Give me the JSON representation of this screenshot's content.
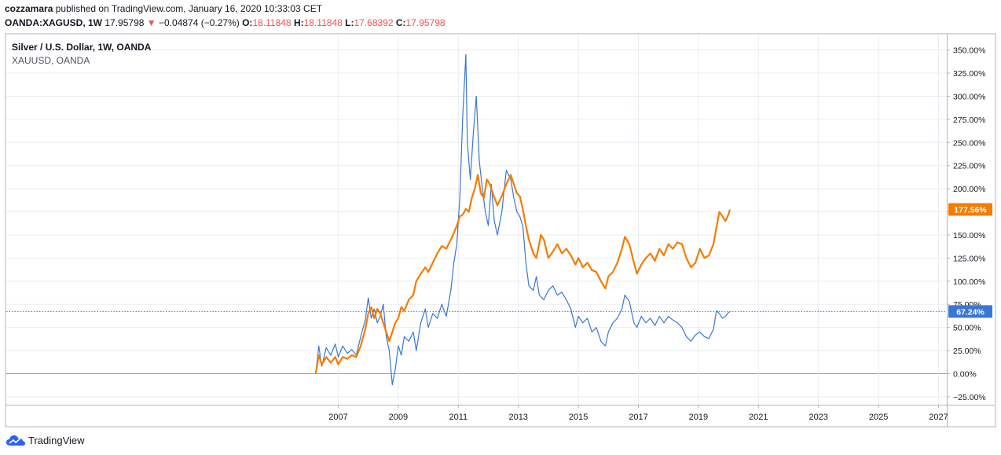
{
  "header": {
    "author": "cozzamara",
    "published_text": "published on TradingView.com, January 16, 2020 10:33:03 CET"
  },
  "ohlc": {
    "symbol": "OANDA:XAGUSD, 1W",
    "last": "17.95798",
    "change": "−0.04874 (−0.27%)",
    "o_label": "O:",
    "o": "18.11848",
    "h_label": "H:",
    "h": "18.11848",
    "l_label": "L:",
    "l": "17.68392",
    "c_label": "C:",
    "c": "17.95798"
  },
  "legend": {
    "main": "Silver / U.S. Dollar, 1W, OANDA",
    "compare": "XAUUSD, OANDA"
  },
  "footer": {
    "brand": "TradingView"
  },
  "colors": {
    "silver": "#f57c00",
    "gold": "#3a76d4",
    "down": "#ef5350",
    "grid": "#e9edf3"
  },
  "chart_data": {
    "type": "line",
    "y_unit": "%",
    "ylim": [
      -27,
      355
    ],
    "xlim": [
      2006.0,
      2027.0
    ],
    "y_ticks": [
      "350.00%",
      "325.00%",
      "300.00%",
      "275.00%",
      "250.00%",
      "225.00%",
      "200.00%",
      "175.00%",
      "150.00%",
      "125.00%",
      "100.00%",
      "75.00%",
      "50.00%",
      "25.00%",
      "0.00%",
      "−25.00%"
    ],
    "y_tick_values": [
      350,
      325,
      300,
      275,
      250,
      225,
      200,
      175,
      150,
      125,
      100,
      75,
      50,
      25,
      0,
      -25
    ],
    "x_ticks": [
      "2007",
      "2009",
      "2011",
      "2013",
      "2015",
      "2017",
      "2019",
      "2021",
      "2023",
      "2025",
      "2027"
    ],
    "x_tick_values": [
      2007,
      2009,
      2011,
      2013,
      2015,
      2017,
      2019,
      2021,
      2023,
      2025,
      2027
    ],
    "grid": true,
    "series": [
      {
        "name": "XAUUSD, OANDA",
        "color": "#3a76d4",
        "last_label": "67.24%",
        "last_value": 67.24,
        "points": [
          [
            2006.25,
            0
          ],
          [
            2006.35,
            30
          ],
          [
            2006.45,
            8
          ],
          [
            2006.6,
            28
          ],
          [
            2006.75,
            20
          ],
          [
            2006.9,
            32
          ],
          [
            2007.0,
            18
          ],
          [
            2007.15,
            30
          ],
          [
            2007.3,
            22
          ],
          [
            2007.45,
            26
          ],
          [
            2007.6,
            20
          ],
          [
            2007.75,
            40
          ],
          [
            2007.9,
            58
          ],
          [
            2008.0,
            82
          ],
          [
            2008.1,
            60
          ],
          [
            2008.2,
            70
          ],
          [
            2008.3,
            55
          ],
          [
            2008.4,
            62
          ],
          [
            2008.5,
            75
          ],
          [
            2008.6,
            40
          ],
          [
            2008.7,
            25
          ],
          [
            2008.8,
            -12
          ],
          [
            2008.9,
            5
          ],
          [
            2009.0,
            30
          ],
          [
            2009.1,
            20
          ],
          [
            2009.2,
            40
          ],
          [
            2009.35,
            35
          ],
          [
            2009.5,
            45
          ],
          [
            2009.6,
            25
          ],
          [
            2009.75,
            55
          ],
          [
            2009.9,
            70
          ],
          [
            2010.0,
            50
          ],
          [
            2010.15,
            65
          ],
          [
            2010.3,
            60
          ],
          [
            2010.45,
            75
          ],
          [
            2010.6,
            62
          ],
          [
            2010.75,
            90
          ],
          [
            2010.85,
            120
          ],
          [
            2010.95,
            140
          ],
          [
            2011.05,
            190
          ],
          [
            2011.15,
            280
          ],
          [
            2011.25,
            345
          ],
          [
            2011.3,
            250
          ],
          [
            2011.4,
            210
          ],
          [
            2011.5,
            260
          ],
          [
            2011.6,
            300
          ],
          [
            2011.7,
            230
          ],
          [
            2011.8,
            200
          ],
          [
            2011.9,
            175
          ],
          [
            2012.0,
            160
          ],
          [
            2012.1,
            205
          ],
          [
            2012.2,
            165
          ],
          [
            2012.3,
            150
          ],
          [
            2012.45,
            175
          ],
          [
            2012.6,
            220
          ],
          [
            2012.75,
            210
          ],
          [
            2012.85,
            190
          ],
          [
            2012.95,
            175
          ],
          [
            2013.05,
            170
          ],
          [
            2013.15,
            160
          ],
          [
            2013.25,
            120
          ],
          [
            2013.35,
            95
          ],
          [
            2013.5,
            90
          ],
          [
            2013.6,
            105
          ],
          [
            2013.7,
            85
          ],
          [
            2013.85,
            80
          ],
          [
            2014.0,
            90
          ],
          [
            2014.15,
            95
          ],
          [
            2014.3,
            85
          ],
          [
            2014.45,
            88
          ],
          [
            2014.6,
            80
          ],
          [
            2014.75,
            70
          ],
          [
            2014.9,
            50
          ],
          [
            2015.0,
            62
          ],
          [
            2015.15,
            55
          ],
          [
            2015.3,
            60
          ],
          [
            2015.45,
            45
          ],
          [
            2015.6,
            50
          ],
          [
            2015.75,
            35
          ],
          [
            2015.9,
            30
          ],
          [
            2016.0,
            45
          ],
          [
            2016.15,
            55
          ],
          [
            2016.3,
            60
          ],
          [
            2016.45,
            70
          ],
          [
            2016.55,
            85
          ],
          [
            2016.7,
            78
          ],
          [
            2016.85,
            55
          ],
          [
            2016.95,
            50
          ],
          [
            2017.1,
            62
          ],
          [
            2017.25,
            55
          ],
          [
            2017.4,
            60
          ],
          [
            2017.55,
            52
          ],
          [
            2017.7,
            62
          ],
          [
            2017.85,
            55
          ],
          [
            2018.0,
            62
          ],
          [
            2018.15,
            58
          ],
          [
            2018.3,
            55
          ],
          [
            2018.45,
            50
          ],
          [
            2018.6,
            40
          ],
          [
            2018.75,
            35
          ],
          [
            2018.9,
            42
          ],
          [
            2019.05,
            45
          ],
          [
            2019.2,
            40
          ],
          [
            2019.35,
            38
          ],
          [
            2019.5,
            48
          ],
          [
            2019.6,
            68
          ],
          [
            2019.7,
            65
          ],
          [
            2019.8,
            60
          ],
          [
            2019.9,
            62
          ],
          [
            2020.0,
            66
          ],
          [
            2020.05,
            67.24
          ]
        ]
      },
      {
        "name": "Silver / U.S. Dollar, 1W, OANDA",
        "color": "#f57c00",
        "last_label": "177.56%",
        "last_value": 177.56,
        "points": [
          [
            2006.25,
            0
          ],
          [
            2006.35,
            20
          ],
          [
            2006.45,
            10
          ],
          [
            2006.6,
            18
          ],
          [
            2006.75,
            12
          ],
          [
            2006.9,
            18
          ],
          [
            2007.0,
            10
          ],
          [
            2007.15,
            18
          ],
          [
            2007.3,
            16
          ],
          [
            2007.45,
            20
          ],
          [
            2007.6,
            18
          ],
          [
            2007.75,
            30
          ],
          [
            2007.9,
            48
          ],
          [
            2008.0,
            65
          ],
          [
            2008.1,
            72
          ],
          [
            2008.2,
            60
          ],
          [
            2008.3,
            70
          ],
          [
            2008.4,
            65
          ],
          [
            2008.5,
            55
          ],
          [
            2008.6,
            45
          ],
          [
            2008.7,
            35
          ],
          [
            2008.8,
            45
          ],
          [
            2008.9,
            55
          ],
          [
            2009.0,
            60
          ],
          [
            2009.1,
            72
          ],
          [
            2009.2,
            68
          ],
          [
            2009.35,
            80
          ],
          [
            2009.5,
            85
          ],
          [
            2009.6,
            100
          ],
          [
            2009.75,
            108
          ],
          [
            2009.9,
            115
          ],
          [
            2010.0,
            110
          ],
          [
            2010.15,
            120
          ],
          [
            2010.3,
            130
          ],
          [
            2010.45,
            138
          ],
          [
            2010.6,
            135
          ],
          [
            2010.75,
            145
          ],
          [
            2010.85,
            152
          ],
          [
            2010.95,
            160
          ],
          [
            2011.05,
            170
          ],
          [
            2011.15,
            172
          ],
          [
            2011.25,
            178
          ],
          [
            2011.35,
            175
          ],
          [
            2011.45,
            190
          ],
          [
            2011.55,
            200
          ],
          [
            2011.65,
            215
          ],
          [
            2011.75,
            195
          ],
          [
            2011.85,
            190
          ],
          [
            2011.95,
            210
          ],
          [
            2012.05,
            205
          ],
          [
            2012.15,
            195
          ],
          [
            2012.3,
            182
          ],
          [
            2012.45,
            192
          ],
          [
            2012.6,
            205
          ],
          [
            2012.75,
            215
          ],
          [
            2012.85,
            205
          ],
          [
            2012.95,
            195
          ],
          [
            2013.05,
            192
          ],
          [
            2013.15,
            178
          ],
          [
            2013.25,
            160
          ],
          [
            2013.35,
            145
          ],
          [
            2013.5,
            130
          ],
          [
            2013.6,
            125
          ],
          [
            2013.75,
            150
          ],
          [
            2013.85,
            145
          ],
          [
            2014.0,
            125
          ],
          [
            2014.15,
            132
          ],
          [
            2014.3,
            140
          ],
          [
            2014.45,
            130
          ],
          [
            2014.6,
            135
          ],
          [
            2014.75,
            128
          ],
          [
            2014.9,
            118
          ],
          [
            2015.0,
            125
          ],
          [
            2015.15,
            115
          ],
          [
            2015.3,
            120
          ],
          [
            2015.45,
            112
          ],
          [
            2015.6,
            110
          ],
          [
            2015.75,
            100
          ],
          [
            2015.9,
            92
          ],
          [
            2016.0,
            105
          ],
          [
            2016.15,
            110
          ],
          [
            2016.3,
            120
          ],
          [
            2016.45,
            135
          ],
          [
            2016.55,
            148
          ],
          [
            2016.7,
            140
          ],
          [
            2016.85,
            120
          ],
          [
            2016.95,
            108
          ],
          [
            2017.1,
            118
          ],
          [
            2017.25,
            125
          ],
          [
            2017.4,
            130
          ],
          [
            2017.55,
            122
          ],
          [
            2017.7,
            135
          ],
          [
            2017.85,
            128
          ],
          [
            2018.0,
            140
          ],
          [
            2018.15,
            135
          ],
          [
            2018.3,
            142
          ],
          [
            2018.45,
            140
          ],
          [
            2018.6,
            125
          ],
          [
            2018.75,
            115
          ],
          [
            2018.9,
            120
          ],
          [
            2019.05,
            135
          ],
          [
            2019.2,
            125
          ],
          [
            2019.35,
            128
          ],
          [
            2019.5,
            140
          ],
          [
            2019.6,
            158
          ],
          [
            2019.7,
            175
          ],
          [
            2019.8,
            170
          ],
          [
            2019.9,
            165
          ],
          [
            2020.0,
            172
          ],
          [
            2020.05,
            177.56
          ]
        ]
      }
    ]
  }
}
